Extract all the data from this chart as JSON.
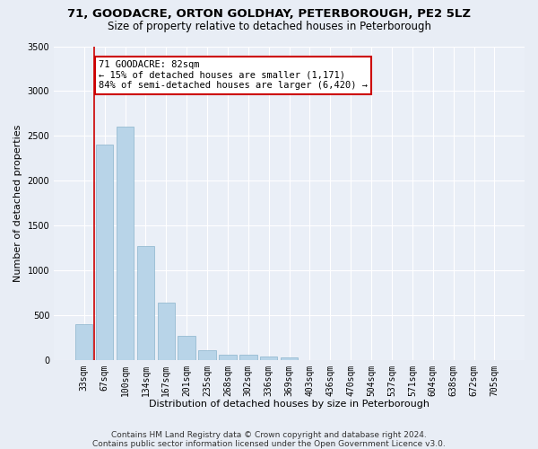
{
  "title_line1": "71, GOODACRE, ORTON GOLDHAY, PETERBOROUGH, PE2 5LZ",
  "title_line2": "Size of property relative to detached houses in Peterborough",
  "xlabel": "Distribution of detached houses by size in Peterborough",
  "ylabel": "Number of detached properties",
  "categories": [
    "33sqm",
    "67sqm",
    "100sqm",
    "134sqm",
    "167sqm",
    "201sqm",
    "235sqm",
    "268sqm",
    "302sqm",
    "336sqm",
    "369sqm",
    "403sqm",
    "436sqm",
    "470sqm",
    "504sqm",
    "537sqm",
    "571sqm",
    "604sqm",
    "638sqm",
    "672sqm",
    "705sqm"
  ],
  "values": [
    400,
    2400,
    2600,
    1270,
    640,
    270,
    110,
    60,
    55,
    40,
    25,
    0,
    0,
    0,
    0,
    0,
    0,
    0,
    0,
    0,
    0
  ],
  "bar_color": "#b8d4e8",
  "bar_edge_color": "#8ab4cc",
  "vline_x": 0.5,
  "vline_color": "#cc0000",
  "annotation_text": "71 GOODACRE: 82sqm\n← 15% of detached houses are smaller (1,171)\n84% of semi-detached houses are larger (6,420) →",
  "annotation_box_facecolor": "#ffffff",
  "annotation_box_edgecolor": "#cc0000",
  "ylim": [
    0,
    3500
  ],
  "yticks": [
    0,
    500,
    1000,
    1500,
    2000,
    2500,
    3000,
    3500
  ],
  "fig_bg_color": "#e8edf5",
  "plot_bg_color": "#eaeff7",
  "footer_text": "Contains HM Land Registry data © Crown copyright and database right 2024.\nContains public sector information licensed under the Open Government Licence v3.0.",
  "title_fontsize": 9.5,
  "subtitle_fontsize": 8.5,
  "axis_label_fontsize": 8,
  "tick_fontsize": 7,
  "annotation_fontsize": 7.5,
  "footer_fontsize": 6.5
}
